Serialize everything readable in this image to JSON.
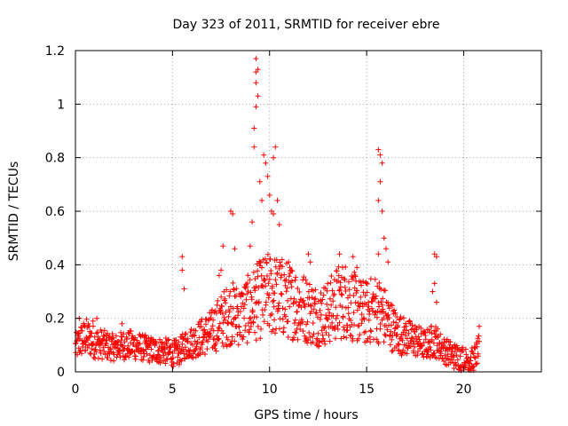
{
  "chart_data": {
    "type": "scatter",
    "title": "Day 323 of 2011, SRMTID for receiver ebre",
    "xlabel": "GPS time / hours",
    "ylabel": "SRMTID / TECUs",
    "xlim": [
      0,
      24
    ],
    "ylim": [
      0,
      1.2
    ],
    "xticks": [
      0,
      5,
      10,
      15,
      20
    ],
    "xtick_labels": [
      "0",
      "5",
      "10",
      "15",
      "20"
    ],
    "yticks": [
      0,
      0.2,
      0.4,
      0.6,
      0.8,
      1,
      1.2
    ],
    "ytick_labels": [
      "0",
      "0.2",
      "0.4",
      "0.6",
      "0.8",
      "1",
      "1.2"
    ],
    "grid": true,
    "marker": "+",
    "series": [
      {
        "name": "SRMTID",
        "color": "#ff0000",
        "profile": [
          [
            0.0,
            0.09
          ],
          [
            0.3,
            0.12
          ],
          [
            0.6,
            0.13
          ],
          [
            1.0,
            0.11
          ],
          [
            1.5,
            0.1
          ],
          [
            2.0,
            0.09
          ],
          [
            2.5,
            0.1
          ],
          [
            3.0,
            0.1
          ],
          [
            3.5,
            0.09
          ],
          [
            4.0,
            0.08
          ],
          [
            4.5,
            0.08
          ],
          [
            5.0,
            0.07
          ],
          [
            5.3,
            0.07
          ],
          [
            5.6,
            0.1
          ],
          [
            6.0,
            0.11
          ],
          [
            6.5,
            0.13
          ],
          [
            7.0,
            0.15
          ],
          [
            7.5,
            0.19
          ],
          [
            8.0,
            0.22
          ],
          [
            8.5,
            0.21
          ],
          [
            9.0,
            0.24
          ],
          [
            9.5,
            0.27
          ],
          [
            10.0,
            0.29
          ],
          [
            10.5,
            0.28
          ],
          [
            11.0,
            0.27
          ],
          [
            11.5,
            0.25
          ],
          [
            12.0,
            0.23
          ],
          [
            12.5,
            0.21
          ],
          [
            13.0,
            0.22
          ],
          [
            13.5,
            0.26
          ],
          [
            14.0,
            0.27
          ],
          [
            14.5,
            0.23
          ],
          [
            15.0,
            0.22
          ],
          [
            15.5,
            0.24
          ],
          [
            16.0,
            0.2
          ],
          [
            16.5,
            0.15
          ],
          [
            17.0,
            0.13
          ],
          [
            17.5,
            0.12
          ],
          [
            18.0,
            0.1
          ],
          [
            18.5,
            0.12
          ],
          [
            19.0,
            0.08
          ],
          [
            19.5,
            0.06
          ],
          [
            20.0,
            0.05
          ],
          [
            20.5,
            0.04
          ],
          [
            20.8,
            0.09
          ]
        ],
        "peaks": [
          [
            0.2,
            0.2
          ],
          [
            0.9,
            0.19
          ],
          [
            1.1,
            0.2
          ],
          [
            2.4,
            0.18
          ],
          [
            5.5,
            0.43
          ],
          [
            5.5,
            0.38
          ],
          [
            5.6,
            0.31
          ],
          [
            7.4,
            0.36
          ],
          [
            7.5,
            0.38
          ],
          [
            7.6,
            0.47
          ],
          [
            8.0,
            0.6
          ],
          [
            8.1,
            0.59
          ],
          [
            8.2,
            0.46
          ],
          [
            9.0,
            0.47
          ],
          [
            9.1,
            0.56
          ],
          [
            9.2,
            0.84
          ],
          [
            9.2,
            0.91
          ],
          [
            9.3,
            0.99
          ],
          [
            9.3,
            1.08
          ],
          [
            9.3,
            1.12
          ],
          [
            9.3,
            1.17
          ],
          [
            9.4,
            1.13
          ],
          [
            9.4,
            1.03
          ],
          [
            9.5,
            0.71
          ],
          [
            9.6,
            0.64
          ],
          [
            9.7,
            0.81
          ],
          [
            9.8,
            0.78
          ],
          [
            9.9,
            0.73
          ],
          [
            10.0,
            0.66
          ],
          [
            10.1,
            0.6
          ],
          [
            10.2,
            0.59
          ],
          [
            10.2,
            0.8
          ],
          [
            10.3,
            0.84
          ],
          [
            10.4,
            0.64
          ],
          [
            10.5,
            0.55
          ],
          [
            12.0,
            0.44
          ],
          [
            12.1,
            0.41
          ],
          [
            13.6,
            0.44
          ],
          [
            14.3,
            0.43
          ],
          [
            14.5,
            0.39
          ],
          [
            15.6,
            0.83
          ],
          [
            15.7,
            0.81
          ],
          [
            15.8,
            0.78
          ],
          [
            15.7,
            0.71
          ],
          [
            15.6,
            0.64
          ],
          [
            15.8,
            0.6
          ],
          [
            15.6,
            0.44
          ],
          [
            15.9,
            0.5
          ],
          [
            16.0,
            0.46
          ],
          [
            16.1,
            0.41
          ],
          [
            18.5,
            0.44
          ],
          [
            18.6,
            0.43
          ],
          [
            18.5,
            0.33
          ],
          [
            18.4,
            0.3
          ],
          [
            18.6,
            0.26
          ],
          [
            20.8,
            0.17
          ]
        ],
        "gaps": [
          [
            20.9,
            24.0
          ]
        ]
      }
    ]
  }
}
